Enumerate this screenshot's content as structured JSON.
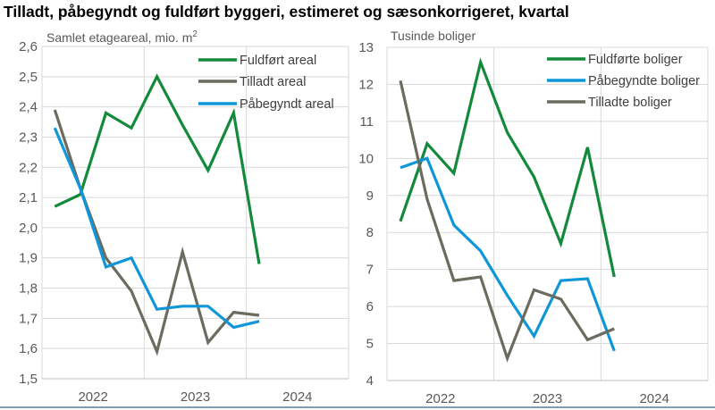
{
  "title": "Tilladt, påbegyndt og fuldført byggeri, estimeret og sæsonkorrigeret, kvartal",
  "chart_data": [
    {
      "type": "line",
      "ylabel": "Samlet etageareal, mio. m",
      "ylabel_sup": "2",
      "ylim": [
        1.5,
        2.6
      ],
      "yticks": [
        1.5,
        1.6,
        1.7,
        1.8,
        1.9,
        2.0,
        2.1,
        2.2,
        2.3,
        2.4,
        2.5,
        2.6
      ],
      "ytick_labels": [
        "1,5",
        "1,6",
        "1,7",
        "1,8",
        "1,9",
        "2,0",
        "2,1",
        "2,2",
        "2,3",
        "2,4",
        "2,5",
        "2,6"
      ],
      "xtick_labels": [
        "2022",
        "2023",
        "2024"
      ],
      "x": [
        "2022Q1",
        "2022Q2",
        "2022Q3",
        "2022Q4",
        "2023Q1",
        "2023Q2",
        "2023Q3",
        "2023Q4",
        "2024Q1"
      ],
      "grid": true,
      "legend": "top-right",
      "series": [
        {
          "name": "Fuldført areal",
          "color": "#138a3b",
          "values": [
            2.07,
            2.11,
            2.38,
            2.33,
            2.5,
            2.34,
            2.19,
            2.38,
            1.88
          ]
        },
        {
          "name": "Tilladt areal",
          "color": "#6b6b60",
          "values": [
            2.39,
            2.13,
            1.9,
            1.79,
            1.59,
            1.92,
            1.62,
            1.72,
            1.71
          ]
        },
        {
          "name": "Påbegyndt areal",
          "color": "#0e96d8",
          "values": [
            2.33,
            2.13,
            1.87,
            1.9,
            1.73,
            1.74,
            1.74,
            1.67,
            1.69
          ]
        }
      ]
    },
    {
      "type": "line",
      "ylabel": "Tusinde boliger",
      "ylim": [
        4,
        13
      ],
      "yticks": [
        4,
        5,
        6,
        7,
        8,
        9,
        10,
        11,
        12,
        13
      ],
      "ytick_labels": [
        "4",
        "5",
        "6",
        "7",
        "8",
        "9",
        "10",
        "11",
        "12",
        "13"
      ],
      "xtick_labels": [
        "2022",
        "2023",
        "2024"
      ],
      "x": [
        "2022Q1",
        "2022Q2",
        "2022Q3",
        "2022Q4",
        "2023Q1",
        "2023Q2",
        "2023Q3",
        "2023Q4",
        "2024Q1"
      ],
      "grid": true,
      "legend": "top-right",
      "series": [
        {
          "name": "Fuldførte boliger",
          "color": "#138a3b",
          "values": [
            8.3,
            10.4,
            9.6,
            12.6,
            10.7,
            9.5,
            7.7,
            10.3,
            6.8
          ]
        },
        {
          "name": "Påbegyndte boliger",
          "color": "#0e96d8",
          "values": [
            9.75,
            10.0,
            8.2,
            7.5,
            6.3,
            5.2,
            6.7,
            6.75,
            4.8
          ]
        },
        {
          "name": "Tilladte boliger",
          "color": "#6b6b60",
          "values": [
            12.1,
            8.9,
            6.7,
            6.8,
            4.6,
            6.45,
            6.2,
            5.1,
            5.4
          ]
        }
      ]
    }
  ]
}
